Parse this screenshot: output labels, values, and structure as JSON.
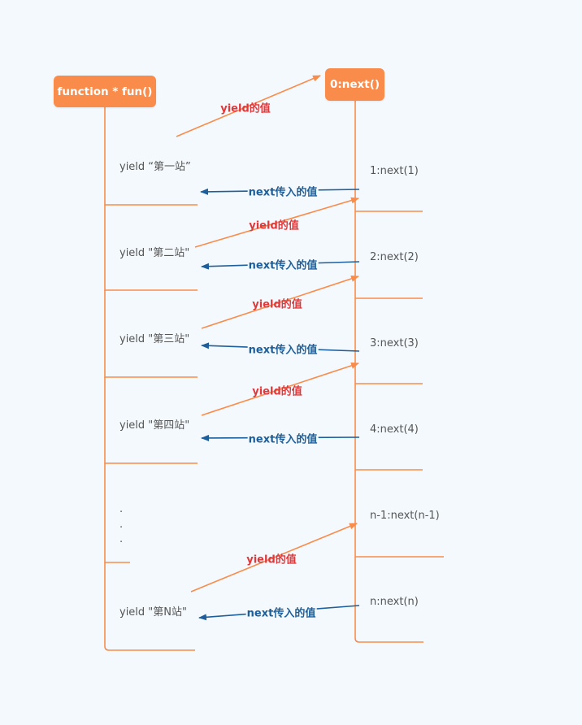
{
  "colors": {
    "background": "#f4f9fd",
    "node_fill": "#f98c4a",
    "node_text": "#ffffff",
    "bracket_line": "#f98c4a",
    "yield_arrow": "#f98c4a",
    "yield_label": "#e0393b",
    "next_arrow": "#1d5f9b",
    "next_label": "#1d5f9b",
    "item_text": "#555555"
  },
  "left_root": {
    "label": "function * fun()"
  },
  "right_root": {
    "label": "0:next()"
  },
  "left_items": [
    {
      "label": "yield “第一站”"
    },
    {
      "label": "yield \"第二站\""
    },
    {
      "label": "yield \"第三站\""
    },
    {
      "label": "yield \"第四站\""
    },
    {
      "label": "yield \"第N站\""
    }
  ],
  "ellipsis": ".",
  "right_items": [
    {
      "label": "1:next(1)"
    },
    {
      "label": "2:next(2)"
    },
    {
      "label": "3:next(3)"
    },
    {
      "label": "4:next(4)"
    },
    {
      "label": "n-1:next(n-1)"
    },
    {
      "label": "n:next(n)"
    }
  ],
  "yield_label": "yield的值",
  "next_label": "next传入的值"
}
